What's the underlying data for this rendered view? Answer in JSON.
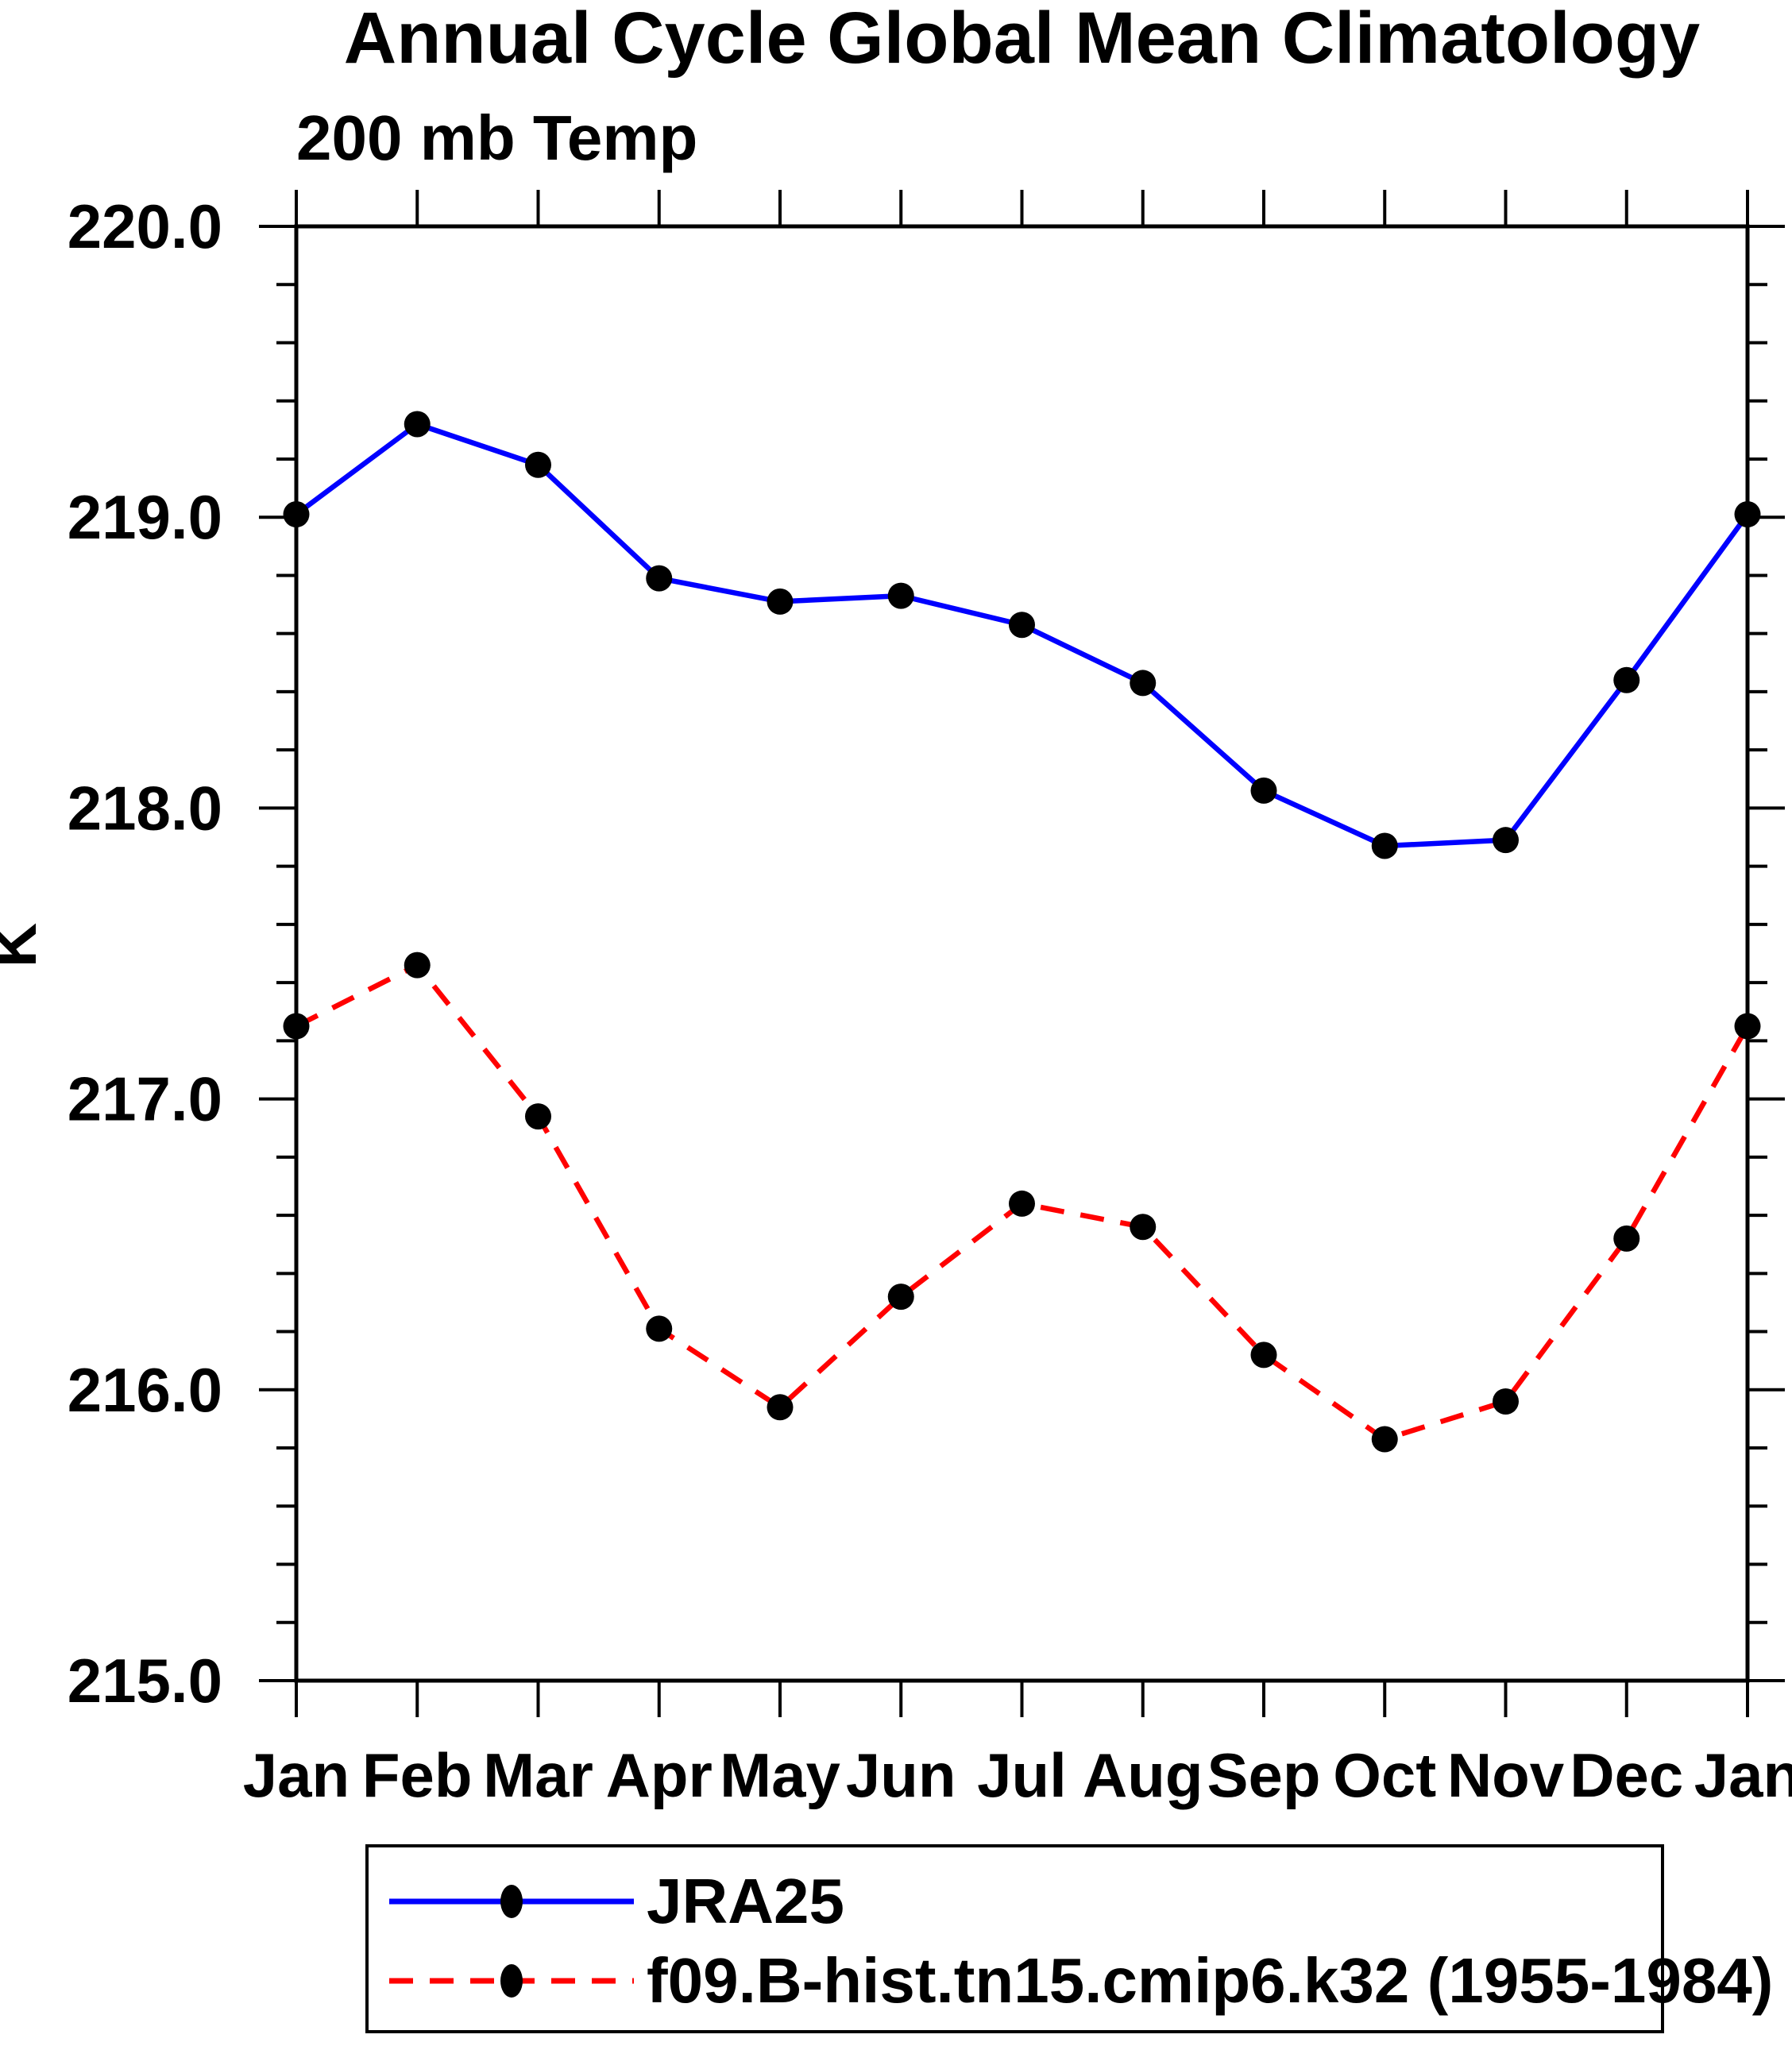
{
  "chart_data": {
    "type": "line",
    "title": "Annual Cycle Global Mean Climatology",
    "subtitle": "200 mb Temp",
    "ylabel": "K",
    "xlabel": "",
    "x_tick_labels": [
      "Jan",
      "Feb",
      "Mar",
      "Apr",
      "May",
      "Jun",
      "Jul",
      "Aug",
      "Sep",
      "Oct",
      "Nov",
      "Dec",
      "Jan"
    ],
    "ylim": [
      215.0,
      220.0
    ],
    "y_major_step": 1.0,
    "y_minor_step": 0.2,
    "y_tick_labels": [
      "215.0",
      "216.0",
      "217.0",
      "218.0",
      "219.0",
      "220.0"
    ],
    "grid": false,
    "legend_position": "bottom",
    "axis_color": "#000000",
    "marker_shape": "filled-circle",
    "series": [
      {
        "name": "JRA25",
        "color": "#0000ff",
        "style": "solid",
        "marker_color": "#000000",
        "values": [
          219.01,
          219.32,
          219.18,
          218.79,
          218.71,
          218.73,
          218.63,
          218.43,
          218.06,
          217.87,
          217.89,
          218.44,
          219.01
        ]
      },
      {
        "name": "f09.B-hist.tn15.cmip6.k32 (1955-1984)",
        "color": "#ff0000",
        "style": "dashed",
        "marker_color": "#000000",
        "values": [
          217.25,
          217.46,
          216.94,
          216.21,
          215.94,
          216.32,
          216.64,
          216.56,
          216.12,
          215.83,
          215.96,
          216.52,
          217.25
        ]
      }
    ]
  }
}
